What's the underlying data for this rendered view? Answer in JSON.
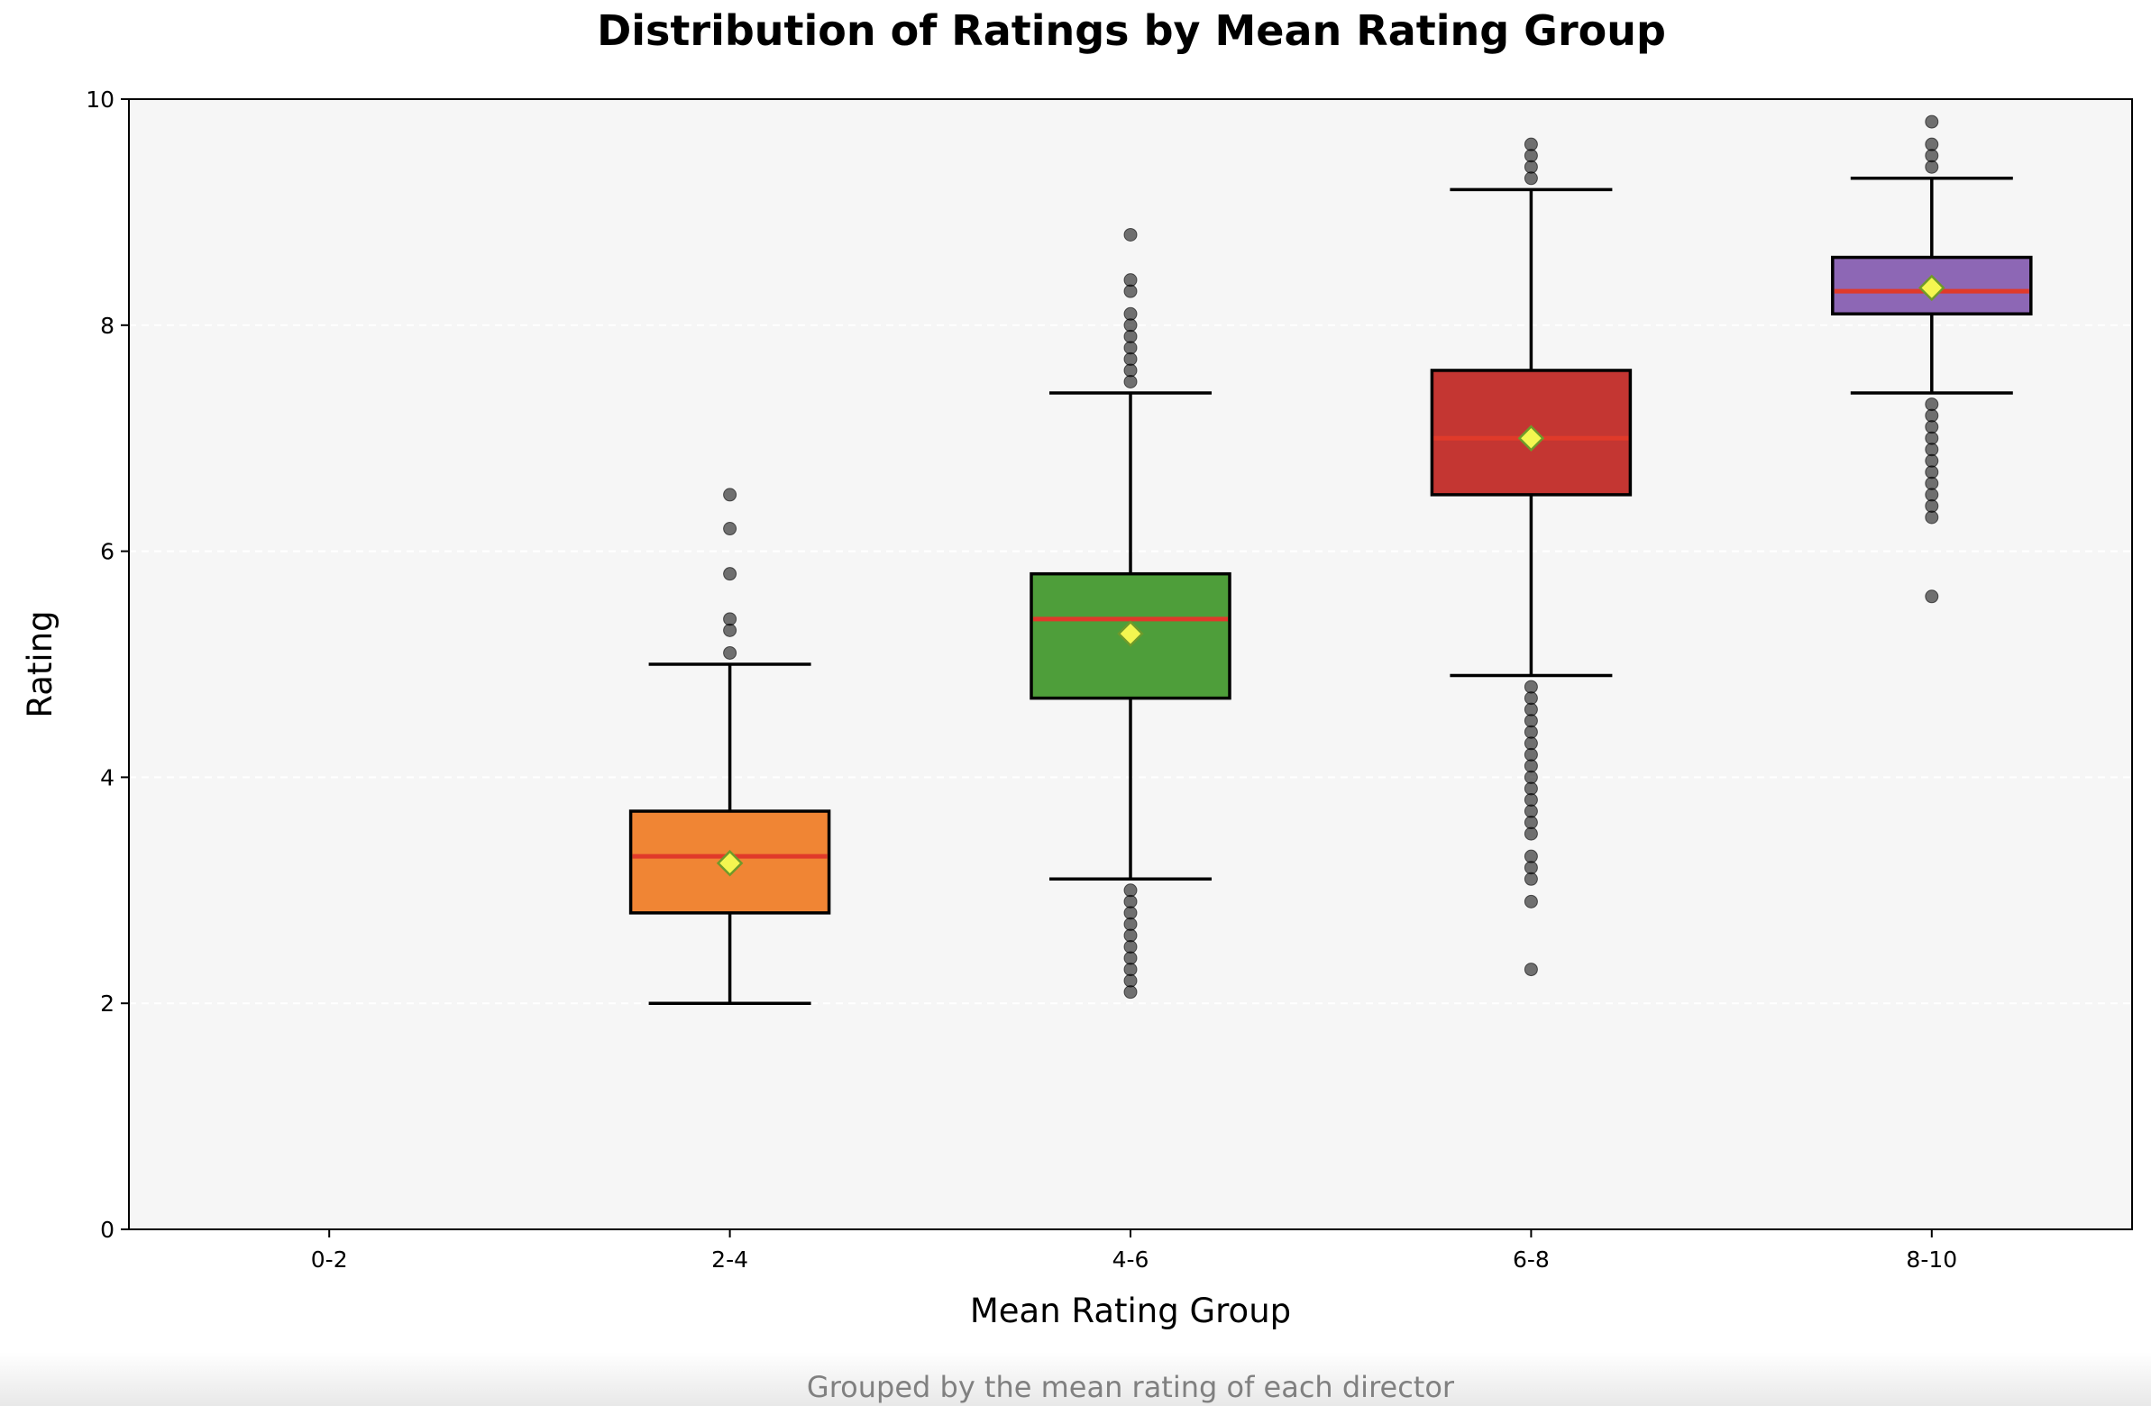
{
  "chart_data": {
    "type": "box",
    "title": "Distribution of Ratings by Mean Rating Group",
    "xlabel": "Mean Rating Group",
    "ylabel": "Rating",
    "caption": "Grouped by the mean rating of each director",
    "ylim": [
      0,
      10
    ],
    "yticks": [
      "0",
      "2",
      "4",
      "6",
      "8",
      "10"
    ],
    "categories": [
      "0-2",
      "2-4",
      "4-6",
      "6-8",
      "8-10"
    ],
    "grid": "horizontal dashed, faint",
    "legend": "none",
    "colors": {
      "plot_background": "#f6f6f6",
      "median_line": "#e03a2a",
      "mean_marker": "#f4f650",
      "mean_marker_edge": "#6f9a2a",
      "outlier": "#000000"
    },
    "groups": [
      {
        "category": "0-2",
        "empty": true
      },
      {
        "category": "2-4",
        "color": "#f08534",
        "whisker_low": 2.0,
        "q1": 2.8,
        "median": 3.3,
        "q3": 3.7,
        "whisker_high": 5.0,
        "mean": 3.24,
        "outliers": [
          5.1,
          5.3,
          5.4,
          5.8,
          6.2,
          6.5
        ]
      },
      {
        "category": "4-6",
        "color": "#4e9e3a",
        "whisker_low": 3.1,
        "q1": 4.7,
        "median": 5.4,
        "q3": 5.8,
        "whisker_high": 7.4,
        "mean": 5.27,
        "outliers": [
          2.1,
          2.2,
          2.3,
          2.4,
          2.5,
          2.6,
          2.7,
          2.8,
          2.9,
          3.0,
          7.5,
          7.6,
          7.7,
          7.8,
          7.9,
          8.0,
          8.1,
          8.3,
          8.4,
          8.8
        ]
      },
      {
        "category": "6-8",
        "color": "#c43632",
        "whisker_low": 4.9,
        "q1": 6.5,
        "median": 7.0,
        "q3": 7.6,
        "whisker_high": 9.2,
        "mean": 7.0,
        "outliers": [
          2.3,
          2.9,
          3.1,
          3.2,
          3.3,
          3.5,
          3.6,
          3.7,
          3.8,
          3.9,
          4.0,
          4.1,
          4.2,
          4.3,
          4.4,
          4.5,
          4.6,
          4.7,
          4.8,
          9.3,
          9.4,
          9.5,
          9.6
        ]
      },
      {
        "category": "8-10",
        "color": "#8d67b5",
        "whisker_low": 7.4,
        "q1": 8.1,
        "median": 8.3,
        "q3": 8.6,
        "whisker_high": 9.3,
        "mean": 8.33,
        "outliers": [
          5.6,
          6.3,
          6.4,
          6.5,
          6.6,
          6.7,
          6.8,
          6.9,
          7.0,
          7.1,
          7.2,
          7.3,
          9.4,
          9.5,
          9.6,
          9.8
        ]
      }
    ]
  }
}
